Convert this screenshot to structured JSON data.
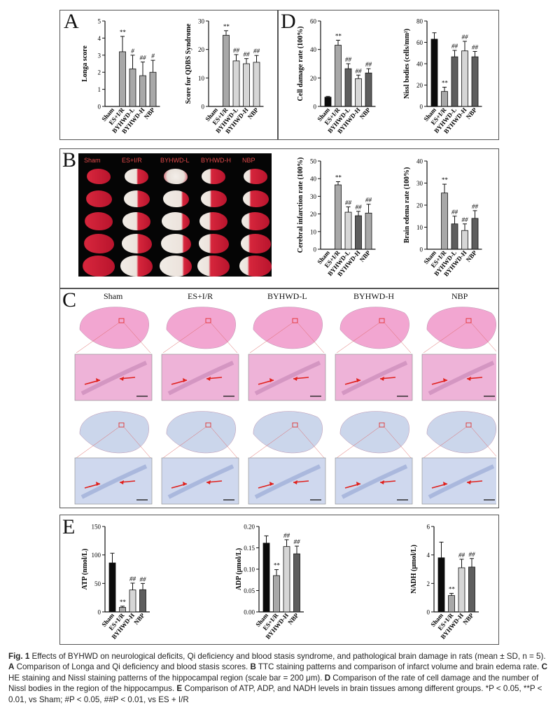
{
  "panel_labels": {
    "a": "A",
    "b": "B",
    "c": "C",
    "d": "D",
    "e": "E"
  },
  "colors": {
    "black": "#0b0b0b",
    "gray": "#a8a8a8",
    "light": "#d6d6d6",
    "dark": "#5e5e5e",
    "he": "#f2a2cf",
    "nissl": "#c9d4ea",
    "ttc": "#d9203a",
    "arrow": "#e0201c"
  },
  "groups": {
    "ttc": [
      "Sham",
      "ES+I/R",
      "BYHWD-L",
      "BYHWD-H",
      "NBP"
    ],
    "he": [
      "Sham",
      "ES+I/R",
      "BYHWD-L",
      "BYHWD-H",
      "NBP"
    ]
  },
  "chart_data": [
    {
      "id": "longa",
      "type": "bar",
      "ylabel": "Longa score",
      "ylim": [
        0,
        5
      ],
      "yticks": [
        0,
        1,
        2,
        3,
        4,
        5
      ],
      "categories": [
        "Sham",
        "ES+I/R",
        "BYHWD-L",
        "BYHWD-H",
        "NBP"
      ],
      "values": [
        0,
        3.2,
        2.2,
        1.8,
        2.0
      ],
      "errors": [
        0,
        0.9,
        0.8,
        0.8,
        0.7
      ],
      "annotations": [
        "",
        "**",
        "#",
        "##",
        "#"
      ],
      "colors": [
        "#0b0b0b",
        "#a8a8a8",
        "#a8a8a8",
        "#a8a8a8",
        "#a8a8a8"
      ]
    },
    {
      "id": "qdbs",
      "type": "bar",
      "ylabel": "Score for QDBS Syndrome",
      "ylim": [
        0,
        30
      ],
      "yticks": [
        0,
        10,
        20,
        30
      ],
      "categories": [
        "Sham",
        "ES+I/R",
        "BYHWD-L",
        "BYHWD-H",
        "NBP"
      ],
      "values": [
        0,
        25,
        16,
        15,
        15.5
      ],
      "errors": [
        0,
        1.6,
        2.2,
        1.8,
        2.4
      ],
      "annotations": [
        "",
        "**",
        "##",
        "##",
        "##"
      ],
      "colors": [
        "#0b0b0b",
        "#a8a8a8",
        "#d6d6d6",
        "#d6d6d6",
        "#d6d6d6"
      ]
    },
    {
      "id": "celldamage",
      "type": "bar",
      "ylabel": "Cell damage rate (100%)",
      "ylim": [
        0,
        60
      ],
      "yticks": [
        0,
        20,
        40,
        60
      ],
      "categories": [
        "Sham",
        "ES+I/R",
        "BYHWD-L",
        "BYHWD-H",
        "NBP"
      ],
      "values": [
        6.5,
        43,
        26.5,
        19.5,
        23.5
      ],
      "errors": [
        0.5,
        3.5,
        3.5,
        2.5,
        3
      ],
      "annotations": [
        "",
        "**",
        "##",
        "##",
        "##"
      ],
      "colors": [
        "#0b0b0b",
        "#a8a8a8",
        "#5e5e5e",
        "#d6d6d6",
        "#5e5e5e"
      ]
    },
    {
      "id": "nissl",
      "type": "bar",
      "ylabel": "Nissl bodies (cells/mm²)",
      "ylim": [
        0,
        80
      ],
      "yticks": [
        0,
        20,
        40,
        60,
        80
      ],
      "categories": [
        "Sham",
        "ES+I/R",
        "BYHWD-L",
        "BYHWD-H",
        "NBP"
      ],
      "values": [
        63,
        14,
        46.5,
        52,
        46.5
      ],
      "errors": [
        6,
        4,
        6,
        9,
        5
      ],
      "annotations": [
        "",
        "**",
        "##",
        "##",
        "##"
      ],
      "colors": [
        "#0b0b0b",
        "#a8a8a8",
        "#5e5e5e",
        "#d6d6d6",
        "#5e5e5e"
      ]
    },
    {
      "id": "infarct",
      "type": "bar",
      "ylabel": "Cerebral infarction rate (100%)",
      "ylim": [
        0,
        50
      ],
      "yticks": [
        0,
        10,
        20,
        30,
        40,
        50
      ],
      "categories": [
        "Sham",
        "ES+I/R",
        "BYHWD-L",
        "BYHWD-H",
        "NBP"
      ],
      "values": [
        0,
        36.5,
        21,
        19,
        20.5
      ],
      "errors": [
        0,
        1.8,
        3,
        2.5,
        5
      ],
      "annotations": [
        "",
        "**",
        "##",
        "##",
        "##"
      ],
      "colors": [
        "#0b0b0b",
        "#a8a8a8",
        "#d6d6d6",
        "#5e5e5e",
        "#a8a8a8"
      ]
    },
    {
      "id": "edema",
      "type": "bar",
      "ylabel": "Brain edema rate (100%)",
      "ylim": [
        0,
        40
      ],
      "yticks": [
        0,
        10,
        20,
        30,
        40
      ],
      "categories": [
        "Sham",
        "ES+I/R",
        "BYHWD-L",
        "BYHWD-H",
        "NBP"
      ],
      "values": [
        0,
        25.5,
        11.5,
        8.5,
        14
      ],
      "errors": [
        0,
        4,
        3.5,
        3,
        3.5
      ],
      "annotations": [
        "",
        "**",
        "##",
        "##",
        "##"
      ],
      "colors": [
        "#0b0b0b",
        "#a8a8a8",
        "#5e5e5e",
        "#d6d6d6",
        "#5e5e5e"
      ]
    },
    {
      "id": "atp",
      "type": "bar",
      "ylabel": "ATP (nmol/L)",
      "ylim": [
        0,
        150
      ],
      "yticks": [
        0,
        50,
        100,
        150
      ],
      "categories": [
        "Sham",
        "ES+I/R",
        "BYHWD-H",
        "NBP"
      ],
      "values": [
        86,
        8,
        38.5,
        39
      ],
      "errors": [
        17,
        2,
        12,
        11
      ],
      "annotations": [
        "",
        "**",
        "##",
        "##"
      ],
      "colors": [
        "#0b0b0b",
        "#a8a8a8",
        "#d6d6d6",
        "#5e5e5e"
      ]
    },
    {
      "id": "adp",
      "type": "bar",
      "ylabel": "ADP (μmol/L)",
      "ylim": [
        0,
        0.2
      ],
      "yticks": [
        0,
        0.05,
        0.1,
        0.15,
        0.2
      ],
      "ytick_labels": [
        "0.00",
        "0.05",
        "0.10",
        "0.15",
        "0.20"
      ],
      "categories": [
        "Sham",
        "ES+I/R",
        "BYHWD-H",
        "NBP"
      ],
      "values": [
        0.161,
        0.085,
        0.153,
        0.136
      ],
      "errors": [
        0.017,
        0.014,
        0.016,
        0.018
      ],
      "annotations": [
        "",
        "**",
        "##",
        "##"
      ],
      "colors": [
        "#0b0b0b",
        "#a8a8a8",
        "#d6d6d6",
        "#5e5e5e"
      ]
    },
    {
      "id": "nadh",
      "type": "bar",
      "ylabel": "NADH (μmol/L)",
      "ylim": [
        0,
        6
      ],
      "yticks": [
        0,
        2,
        4,
        6
      ],
      "categories": [
        "Sham",
        "ES+I/R",
        "BYHWD-H",
        "NBP"
      ],
      "values": [
        3.8,
        1.15,
        3.1,
        3.15
      ],
      "errors": [
        1.1,
        0.15,
        0.6,
        0.6
      ],
      "annotations": [
        "",
        "**",
        "##",
        "##"
      ],
      "colors": [
        "#0b0b0b",
        "#a8a8a8",
        "#d6d6d6",
        "#5e5e5e"
      ]
    }
  ],
  "caption": {
    "fig": "Fig. 1",
    "t0": "Effects of BYHWD on neurological deficits, Qi deficiency and blood stasis syndrome, and pathological brain damage in rats (mean ± SD, n = 5).",
    "a": "A",
    "ta": "Comparison of Longa and Qi deficiency and blood stasis scores.",
    "b": "B",
    "tb": "TTC staining patterns and comparison of infarct volume and brain edema rate.",
    "c": "C",
    "tc": "HE staining and Nissl staining patterns of the hippocampal region (scale bar = 200 μm).",
    "d": "D",
    "td": "Comparison of the rate of cell damage and the number of Nissl bodies in the region of the hippocampus.",
    "e": "E",
    "te": "Comparison of ATP, ADP, and NADH levels in brain tissues among different groups.",
    "tsig": "*P < 0.05, **P < 0.01, vs Sham; #P < 0.05, ##P < 0.01, vs ES + I/R"
  }
}
